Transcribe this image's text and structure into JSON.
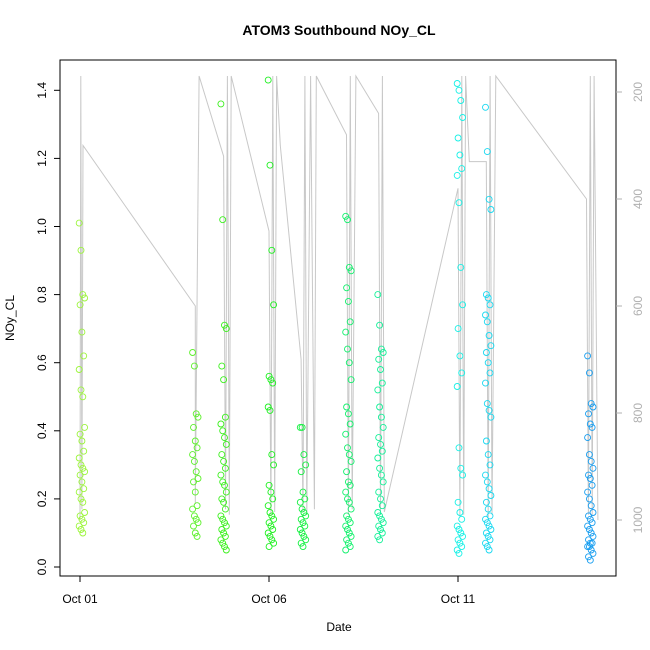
{
  "chart_data": {
    "type": "scatter",
    "title": "ATOM3 Southbound NOy_CL",
    "xlabel": "Date",
    "ylabel": "NOy_CL",
    "x_ticks": [
      "Oct 01",
      "Oct 06",
      "Oct 11"
    ],
    "y_ticks": [
      "0.0",
      "0.2",
      "0.4",
      "0.6",
      "0.8",
      "1.0",
      "1.2",
      "1.4"
    ],
    "y_right_ticks": [
      "200",
      "400",
      "600",
      "800",
      "1000"
    ],
    "xlim_days": [
      0,
      13.8
    ],
    "ylim": [
      0,
      1.48
    ],
    "y_right_lim": [
      1040,
      170
    ],
    "point_color_note": "colored by flight",
    "flights": [
      {
        "day": 0.05,
        "color": "#9cf53c",
        "values": [
          1.01,
          0.93,
          0.8,
          0.79,
          0.77,
          0.69,
          0.62,
          0.58,
          0.52,
          0.5,
          0.41,
          0.39,
          0.37,
          0.34,
          0.32,
          0.3,
          0.29,
          0.28,
          0.27,
          0.25,
          0.23,
          0.22,
          0.2,
          0.19,
          0.16,
          0.15,
          0.14,
          0.13,
          0.12,
          0.11,
          0.1
        ]
      },
      {
        "day": 3.05,
        "color": "#5cf02a",
        "values": [
          0.63,
          0.59,
          0.45,
          0.44,
          0.41,
          0.37,
          0.35,
          0.33,
          0.31,
          0.28,
          0.26,
          0.25,
          0.22,
          0.18,
          0.17,
          0.15,
          0.14,
          0.13,
          0.12,
          0.1,
          0.09
        ]
      },
      {
        "day": 3.8,
        "color": "#3cf01e",
        "values": [
          1.36,
          1.02,
          0.71,
          0.7,
          0.59,
          0.55,
          0.44,
          0.42,
          0.4,
          0.38,
          0.36,
          0.33,
          0.31,
          0.29,
          0.27,
          0.25,
          0.24,
          0.22,
          0.2,
          0.19,
          0.17,
          0.15,
          0.14,
          0.13,
          0.12,
          0.11,
          0.1,
          0.09,
          0.08,
          0.07,
          0.06,
          0.05
        ]
      },
      {
        "day": 5.05,
        "color": "#1ef020",
        "values": [
          1.43,
          1.18,
          0.93,
          0.77,
          0.56,
          0.55,
          0.54,
          0.47,
          0.46,
          0.33,
          0.3,
          0.24,
          0.22,
          0.2,
          0.18,
          0.16,
          0.15,
          0.14,
          0.13,
          0.12,
          0.11,
          0.1,
          0.09,
          0.08,
          0.07,
          0.06
        ]
      },
      {
        "day": 5.9,
        "color": "#14f040",
        "values": [
          0.41,
          0.41,
          0.33,
          0.3,
          0.28,
          0.22,
          0.2,
          0.19,
          0.17,
          0.16,
          0.15,
          0.14,
          0.13,
          0.12,
          0.11,
          0.1,
          0.09,
          0.08,
          0.07,
          0.06
        ]
      },
      {
        "day": 7.1,
        "color": "#12f06c",
        "values": [
          1.03,
          1.02,
          0.88,
          0.87,
          0.82,
          0.78,
          0.72,
          0.69,
          0.64,
          0.6,
          0.55,
          0.47,
          0.45,
          0.42,
          0.39,
          0.35,
          0.33,
          0.31,
          0.28,
          0.25,
          0.24,
          0.22,
          0.2,
          0.19,
          0.17,
          0.15,
          0.14,
          0.13,
          0.12,
          0.11,
          0.1,
          0.09,
          0.08,
          0.07,
          0.06,
          0.05
        ]
      },
      {
        "day": 7.95,
        "color": "#14f098",
        "values": [
          0.8,
          0.71,
          0.64,
          0.63,
          0.61,
          0.58,
          0.54,
          0.52,
          0.47,
          0.44,
          0.41,
          0.38,
          0.36,
          0.34,
          0.32,
          0.29,
          0.27,
          0.25,
          0.22,
          0.2,
          0.18,
          0.16,
          0.15,
          0.14,
          0.13,
          0.12,
          0.11,
          0.1,
          0.09,
          0.08
        ]
      },
      {
        "day": 10.05,
        "color": "#18f0e6",
        "values": [
          1.42,
          1.4,
          1.37,
          1.32,
          1.26,
          1.21,
          1.17,
          1.15,
          1.07,
          0.88,
          0.77,
          0.7,
          0.62,
          0.57,
          0.53,
          0.35,
          0.29,
          0.27,
          0.19,
          0.16,
          0.14,
          0.12,
          0.11,
          0.1,
          0.09,
          0.08,
          0.07,
          0.06,
          0.05,
          0.04
        ]
      },
      {
        "day": 10.8,
        "color": "#1ad8f0",
        "values": [
          1.35,
          1.22,
          1.08,
          1.05,
          0.8,
          0.79,
          0.77,
          0.74,
          0.72,
          0.68,
          0.65,
          0.63,
          0.6,
          0.57,
          0.54,
          0.48,
          0.46,
          0.44,
          0.37,
          0.33,
          0.3,
          0.27,
          0.25,
          0.23,
          0.21,
          0.19,
          0.17,
          0.15,
          0.14,
          0.13,
          0.12,
          0.11,
          0.1,
          0.09,
          0.08,
          0.07,
          0.06,
          0.05
        ]
      },
      {
        "day": 13.5,
        "color": "#189ef0",
        "values": [
          0.62,
          0.57,
          0.48,
          0.47,
          0.45,
          0.42,
          0.41,
          0.38,
          0.33,
          0.31,
          0.29,
          0.27,
          0.26,
          0.24,
          0.22,
          0.2,
          0.18,
          0.16,
          0.15,
          0.14,
          0.13,
          0.12,
          0.11,
          0.1,
          0.09,
          0.08,
          0.07,
          0.07,
          0.06,
          0.06,
          0.05,
          0.04,
          0.03,
          0.02
        ]
      }
    ],
    "pressure_trace": {
      "color": "#c8c8c8",
      "points": [
        [
          0.0,
          1000
        ],
        [
          0.02,
          170
        ],
        [
          0.05,
          980
        ],
        [
          0.08,
          300
        ],
        [
          3.05,
          600
        ],
        [
          3.05,
          970
        ],
        [
          3.1,
          560
        ],
        [
          3.15,
          170
        ],
        [
          3.8,
          320
        ],
        [
          3.85,
          980
        ],
        [
          3.9,
          170
        ],
        [
          3.95,
          990
        ],
        [
          4.0,
          170
        ],
        [
          5.0,
          460
        ],
        [
          5.05,
          990
        ],
        [
          5.1,
          170
        ],
        [
          5.15,
          985
        ],
        [
          5.2,
          170
        ],
        [
          5.3,
          300
        ],
        [
          5.85,
          700
        ],
        [
          5.9,
          985
        ],
        [
          5.95,
          170
        ],
        [
          6.0,
          990
        ],
        [
          6.1,
          170
        ],
        [
          6.2,
          980
        ],
        [
          6.25,
          170
        ],
        [
          7.05,
          280
        ],
        [
          7.1,
          990
        ],
        [
          7.15,
          170
        ],
        [
          7.2,
          980
        ],
        [
          7.3,
          170
        ],
        [
          7.9,
          240
        ],
        [
          7.95,
          990
        ],
        [
          8.0,
          170
        ],
        [
          8.05,
          985
        ],
        [
          10.0,
          380
        ],
        [
          10.05,
          995
        ],
        [
          10.1,
          170
        ],
        [
          10.15,
          990
        ],
        [
          10.2,
          170
        ],
        [
          10.3,
          330
        ],
        [
          10.75,
          330
        ],
        [
          10.8,
          995
        ],
        [
          10.85,
          170
        ],
        [
          10.9,
          990
        ],
        [
          11.0,
          170
        ],
        [
          13.4,
          400
        ],
        [
          13.45,
          990
        ],
        [
          13.5,
          170
        ],
        [
          13.55,
          990
        ],
        [
          13.6,
          170
        ],
        [
          13.7,
          1000
        ]
      ]
    }
  }
}
